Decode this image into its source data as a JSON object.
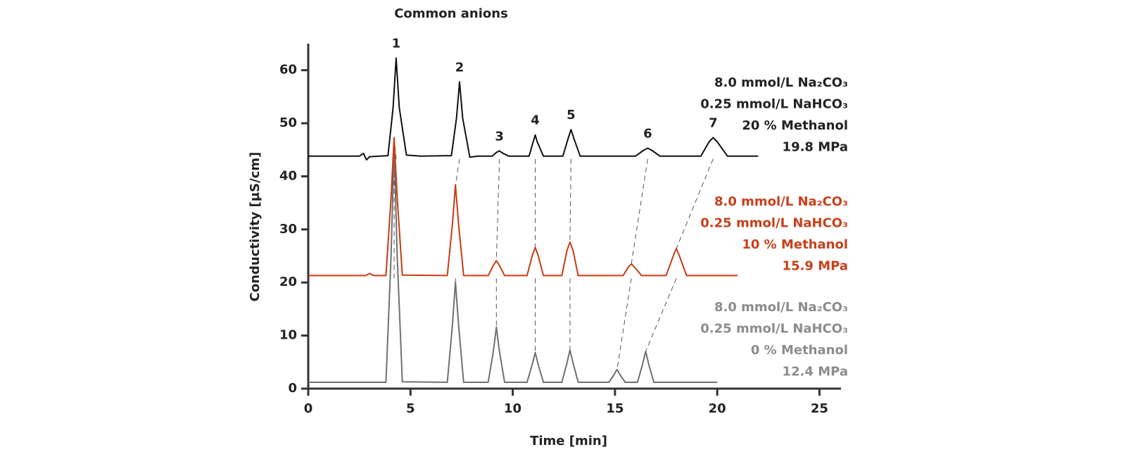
{
  "chart_data": {
    "type": "line",
    "title": "Common anions",
    "x_label": "Time [min]",
    "y_label": "Conductivity [µS/cm]",
    "xlim": [
      0,
      26
    ],
    "xticks": [
      0,
      5,
      10,
      15,
      20,
      25
    ],
    "ylim": [
      0,
      65
    ],
    "yticks": [
      0,
      10,
      20,
      30,
      40,
      50,
      60
    ],
    "peak_labels": [
      "1",
      "2",
      "3",
      "4",
      "5",
      "6",
      "7"
    ],
    "series": [
      {
        "labels": [
          "8.0 mmol/L Na₂CO₃",
          "0.25 mmol/L NaHCO₃",
          "0 % Methanol",
          "12.4 MPa"
        ],
        "color": "#707070",
        "label_color": "#8c8c8c",
        "x": [
          0,
          3.8,
          4.05,
          4.2,
          4.35,
          4.6,
          6.8,
          7.05,
          7.2,
          7.35,
          7.6,
          8.8,
          9.05,
          9.2,
          9.35,
          9.6,
          10.7,
          10.95,
          11.1,
          11.25,
          11.5,
          12.4,
          12.65,
          12.8,
          12.95,
          13.2,
          14.7,
          14.95,
          15.1,
          15.25,
          15.5,
          16.1,
          16.35,
          16.5,
          16.65,
          16.9,
          20.0
        ],
        "values": [
          1.2,
          1.2,
          25,
          46,
          25,
          1.3,
          1.2,
          12,
          20.1,
          12,
          1.2,
          1.2,
          7,
          11.6,
          7,
          1.2,
          1.2,
          4.5,
          6.8,
          4.5,
          1.2,
          1.2,
          4.8,
          7.3,
          4.8,
          1.2,
          1.2,
          2.6,
          3.6,
          2.6,
          1.2,
          1.2,
          4.6,
          7.0,
          4.6,
          1.2,
          1.2
        ]
      },
      {
        "labels": [
          "8.0 mmol/L Na₂CO₃",
          "0.25 mmol/L NaHCO₃",
          "10 % Methanol",
          "15.9 MPa"
        ],
        "color": "#c63c14",
        "label_color": "#c8401a",
        "x": [
          0,
          2.8,
          3.0,
          3.2,
          3.8,
          4.05,
          4.2,
          4.35,
          4.6,
          6.8,
          7.05,
          7.2,
          7.35,
          7.6,
          8.8,
          9.05,
          9.2,
          9.35,
          9.6,
          10.7,
          10.95,
          11.1,
          11.25,
          11.5,
          12.4,
          12.65,
          12.8,
          12.95,
          13.2,
          15.4,
          15.65,
          15.8,
          15.95,
          16.3,
          17.5,
          17.85,
          18.0,
          18.15,
          18.5,
          21.0
        ],
        "values": [
          21.3,
          21.3,
          21.7,
          21.3,
          21.3,
          36,
          47.3,
          36,
          21.4,
          21.3,
          31,
          38.4,
          31,
          21.3,
          21.3,
          23.2,
          24.1,
          23.2,
          21.3,
          21.3,
          25,
          26.6,
          25,
          21.3,
          21.3,
          26,
          27.6,
          26,
          21.3,
          21.3,
          22.9,
          23.5,
          22.9,
          21.3,
          21.3,
          25,
          26.4,
          25,
          21.3,
          21.3
        ]
      },
      {
        "labels": [
          "8.0 mmol/L Na₂CO₃",
          "0.25 mmol/L NaHCO₃",
          "20 % Methanol",
          "19.8 MPa"
        ],
        "color": "#111111",
        "label_color": "#222222",
        "x": [
          0,
          2.5,
          2.7,
          2.85,
          3.0,
          3.5,
          3.9,
          4.15,
          4.3,
          4.45,
          4.8,
          5.5,
          7.0,
          7.25,
          7.4,
          7.55,
          7.9,
          8.3,
          9.0,
          9.2,
          9.35,
          9.5,
          9.8,
          10.8,
          11.0,
          11.1,
          11.2,
          11.5,
          12.45,
          12.7,
          12.85,
          13.0,
          13.3,
          16.0,
          16.4,
          16.6,
          16.8,
          17.2,
          19.2,
          19.6,
          19.8,
          20.0,
          20.5,
          22.0
        ],
        "values": [
          43.8,
          43.8,
          44.3,
          43.1,
          43.7,
          43.8,
          43.9,
          53,
          62.3,
          53,
          44.0,
          43.8,
          43.9,
          51,
          57.8,
          51,
          43.6,
          43.8,
          43.8,
          44.5,
          44.8,
          44.4,
          43.8,
          43.8,
          46.5,
          47.8,
          46.5,
          43.8,
          43.8,
          47,
          48.8,
          47,
          43.8,
          43.8,
          44.9,
          45.3,
          44.9,
          43.8,
          43.8,
          46.5,
          47.3,
          46.5,
          43.8,
          43.8
        ]
      }
    ]
  }
}
